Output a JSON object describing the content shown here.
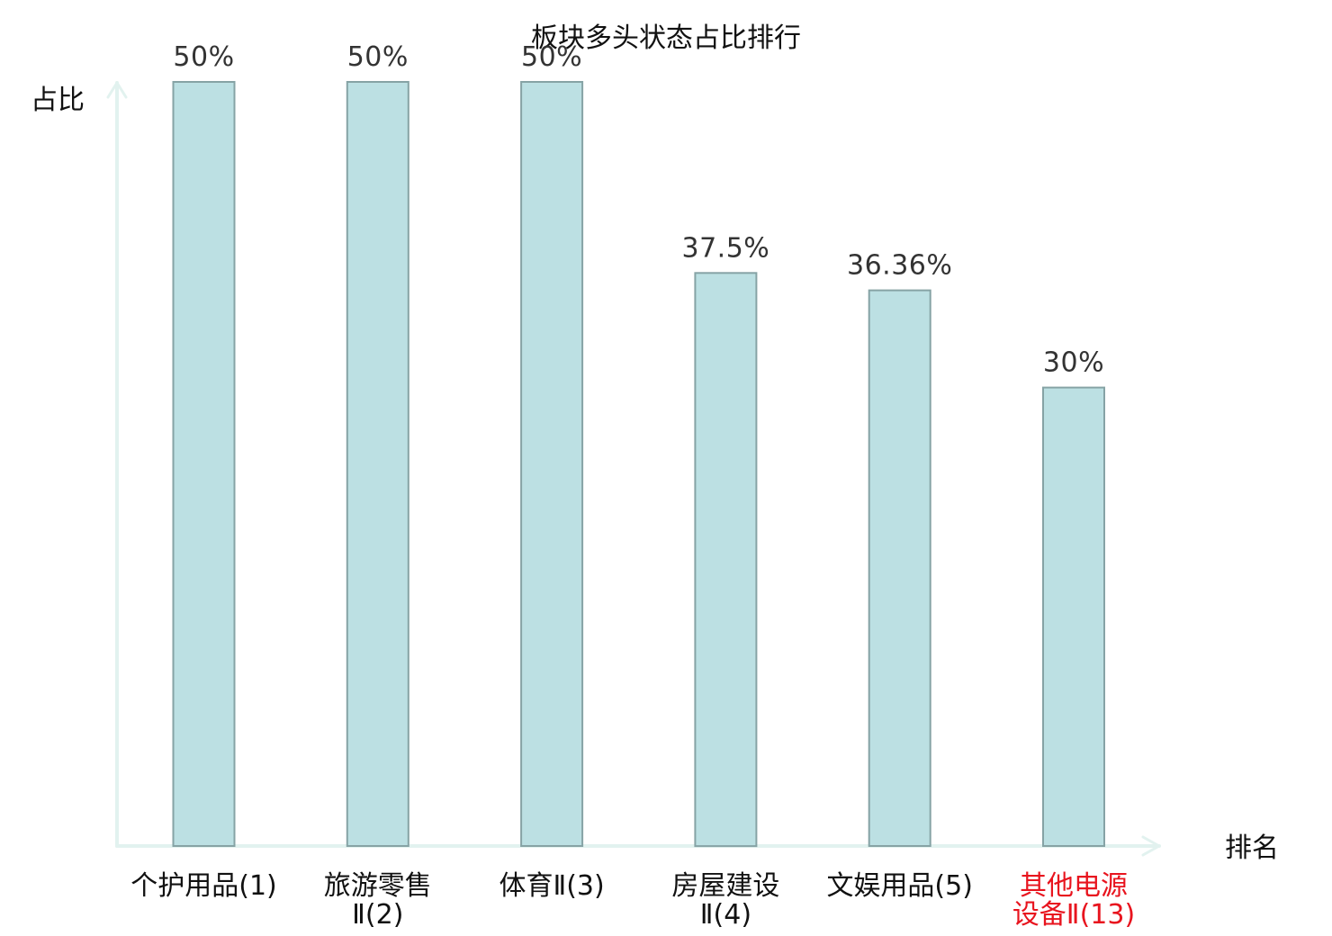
{
  "chart_data": {
    "type": "bar",
    "title": "板块多头状态占比排行",
    "xlabel": "排名",
    "ylabel": "占比",
    "categories": [
      [
        "个护用品(1)"
      ],
      [
        "旅游零售",
        "Ⅱ(2)"
      ],
      [
        "体育Ⅱ(3)"
      ],
      [
        "房屋建设",
        "Ⅱ(4)"
      ],
      [
        "文娱用品(5)"
      ],
      [
        "其他电源",
        "设备Ⅱ(13)"
      ]
    ],
    "values": [
      50,
      50,
      50,
      37.5,
      36.36,
      30
    ],
    "value_labels": [
      "50%",
      "50%",
      "50%",
      "37.5%",
      "36.36%",
      "30%"
    ],
    "highlight_index": 5,
    "ylim": [
      0,
      50
    ],
    "grid": false,
    "colors": {
      "bar_fill": "#bce0e3",
      "bar_stroke": "#86a3a5",
      "axis": "#e2f2ef",
      "label_default": "#111111",
      "label_highlight": "#e8141e"
    }
  }
}
